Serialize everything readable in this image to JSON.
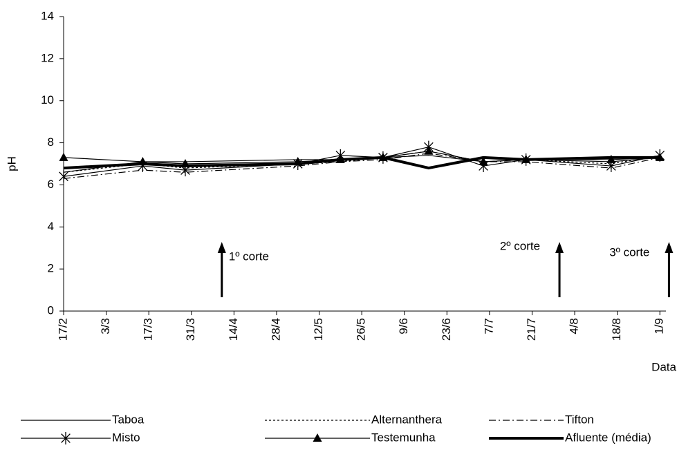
{
  "chart_data": {
    "type": "line",
    "y_label": "pH",
    "x_label": "Data",
    "ylim": [
      0,
      14
    ],
    "yticks": [
      0,
      2,
      4,
      6,
      8,
      10,
      12,
      14
    ],
    "xlim": [
      "17/2",
      "3/9"
    ],
    "xticks": [
      "17/2",
      "3/3",
      "17/3",
      "31/3",
      "14/4",
      "28/4",
      "12/5",
      "26/5",
      "9/6",
      "23/6",
      "7/7",
      "21/7",
      "4/8",
      "18/8",
      "1/9"
    ],
    "x": [
      "17/2",
      "15/3",
      "29/3",
      "5/5",
      "19/5",
      "2/6",
      "17/6",
      "5/7",
      "19/7",
      "16/8",
      "1/9"
    ],
    "series": [
      {
        "name": "Taboa",
        "color": "#000000",
        "width": 1.2,
        "dash": "none",
        "marker": "none",
        "values": [
          6.6,
          7.1,
          7.1,
          7.2,
          7.2,
          7.3,
          7.4,
          7.1,
          7.2,
          7.1,
          7.3
        ]
      },
      {
        "name": "Alternanthera",
        "color": "#000000",
        "width": 1.2,
        "dash": "3 3",
        "marker": "none",
        "values": [
          6.6,
          7.0,
          6.8,
          7.0,
          7.1,
          7.3,
          7.6,
          7.1,
          7.2,
          7.0,
          7.4
        ]
      },
      {
        "name": "Tifton",
        "color": "#000000",
        "width": 1.2,
        "dash": "10 4 2 4",
        "marker": "none",
        "values": [
          6.3,
          6.7,
          6.6,
          6.9,
          7.1,
          7.2,
          7.5,
          7.1,
          7.1,
          6.8,
          7.3
        ]
      },
      {
        "name": "Misto",
        "color": "#000000",
        "width": 1.2,
        "dash": "none",
        "marker": "asterisk",
        "values": [
          6.4,
          6.9,
          6.7,
          7.0,
          7.4,
          7.3,
          7.8,
          6.9,
          7.2,
          6.9,
          7.4
        ]
      },
      {
        "name": "Testemunha",
        "color": "#000000",
        "width": 1.2,
        "dash": "none",
        "marker": "triangle",
        "values": [
          7.3,
          7.1,
          7.0,
          7.1,
          7.2,
          7.3,
          7.6,
          7.1,
          7.2,
          7.2,
          7.3
        ]
      },
      {
        "name": "Afluente (média)",
        "color": "#000000",
        "width": 4,
        "dash": "none",
        "marker": "none",
        "values": [
          6.8,
          7.0,
          6.9,
          7.0,
          7.2,
          7.3,
          6.8,
          7.3,
          7.2,
          7.3,
          7.3
        ]
      }
    ],
    "annotations": [
      {
        "text": "1º corte",
        "x": "10/4"
      },
      {
        "text": "2º corte",
        "x": "30/7"
      },
      {
        "text": "3º corte",
        "x": "4/9"
      }
    ]
  }
}
